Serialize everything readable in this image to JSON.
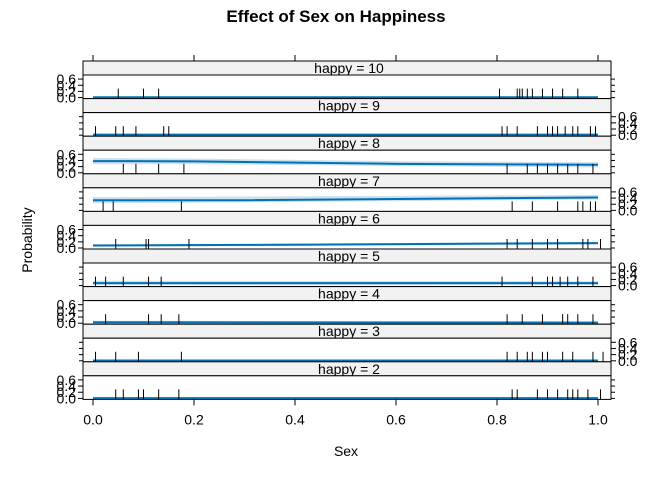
{
  "chart_data": {
    "type": "line",
    "title": "Effect of Sex on Happiness",
    "xlabel": "Sex",
    "ylabel": "Probability",
    "xlim": [
      -0.025,
      1.025
    ],
    "x_ticks": [
      "0.0",
      "0.2",
      "0.4",
      "0.6",
      "0.8",
      "1.0"
    ],
    "y_ticks": [
      "0.0",
      "0.2",
      "0.4",
      "0.6"
    ],
    "ylim": [
      0,
      0.7
    ],
    "colors": {
      "line": "#0072B2",
      "band": "#CCE0F0",
      "strip": "#F2F2F2",
      "rug": "#000000"
    },
    "panels": [
      {
        "label": "happy = 10",
        "x": [
          0,
          1
        ],
        "y": [
          0.01,
          0.01
        ],
        "lower": [
          0.0,
          0.0
        ],
        "upper": [
          0.03,
          0.03
        ],
        "rug": [
          0.05,
          0.1,
          0.13,
          0.805,
          0.84,
          0.845,
          0.85,
          0.86,
          0.87,
          0.89,
          0.91,
          0.93,
          0.96
        ]
      },
      {
        "label": "happy = 9",
        "x": [
          0,
          1
        ],
        "y": [
          0.02,
          0.02
        ],
        "lower": [
          0.0,
          0.0
        ],
        "upper": [
          0.04,
          0.04
        ],
        "rug": [
          0.005,
          0.045,
          0.06,
          0.085,
          0.14,
          0.15,
          0.81,
          0.82,
          0.84,
          0.88,
          0.9,
          0.91,
          0.92,
          0.935,
          0.95,
          0.96,
          0.985,
          0.995
        ]
      },
      {
        "label": "happy = 8",
        "x": [
          0,
          0.2,
          0.6,
          1
        ],
        "y": [
          0.38,
          0.37,
          0.29,
          0.26
        ],
        "lower": [
          0.28,
          0.28,
          0.22,
          0.17
        ],
        "upper": [
          0.48,
          0.46,
          0.38,
          0.34
        ],
        "rug": [
          0.06,
          0.085,
          0.13,
          0.18,
          0.82,
          0.86,
          0.88,
          0.9,
          0.92,
          0.94,
          0.96,
          0.99
        ]
      },
      {
        "label": "happy = 7",
        "x": [
          0,
          0.3,
          1
        ],
        "y": [
          0.33,
          0.33,
          0.42
        ],
        "lower": [
          0.23,
          0.26,
          0.35
        ],
        "upper": [
          0.43,
          0.45,
          0.5
        ],
        "rug": [
          0.02,
          0.04,
          0.175,
          0.83,
          0.87,
          0.92,
          0.96,
          0.97,
          0.985,
          0.995
        ]
      },
      {
        "label": "happy = 6",
        "x": [
          0,
          0.3,
          1
        ],
        "y": [
          0.08,
          0.1,
          0.16
        ],
        "lower": [
          0.04,
          0.06,
          0.11
        ],
        "upper": [
          0.12,
          0.13,
          0.2
        ],
        "rug": [
          0.045,
          0.105,
          0.11,
          0.19,
          0.82,
          0.84,
          0.87,
          0.9,
          0.92,
          0.97,
          0.98,
          1.005
        ]
      },
      {
        "label": "happy = 5",
        "x": [
          0,
          1
        ],
        "y": [
          0.08,
          0.08
        ],
        "lower": [
          0.02,
          0.02
        ],
        "upper": [
          0.16,
          0.14
        ],
        "rug": [
          0.005,
          0.025,
          0.06,
          0.11,
          0.135,
          0.81,
          0.87,
          0.9,
          0.91,
          0.925,
          0.94,
          0.96,
          0.99
        ]
      },
      {
        "label": "happy = 4",
        "x": [
          0,
          1
        ],
        "y": [
          0.03,
          0.02
        ],
        "lower": [
          0.0,
          0.0
        ],
        "upper": [
          0.08,
          0.06
        ],
        "rug": [
          0.025,
          0.11,
          0.135,
          0.17,
          0.82,
          0.85,
          0.89,
          0.93,
          0.94,
          0.96,
          0.99
        ]
      },
      {
        "label": "happy = 3",
        "x": [
          0,
          1
        ],
        "y": [
          0.01,
          0.01
        ],
        "lower": [
          0.0,
          0.0
        ],
        "upper": [
          0.03,
          0.03
        ],
        "rug": [
          0.005,
          0.045,
          0.09,
          0.175,
          0.82,
          0.84,
          0.86,
          0.87,
          0.89,
          0.9,
          0.93,
          0.95,
          0.99,
          1.01
        ]
      },
      {
        "label": "happy = 2",
        "x": [
          0,
          1
        ],
        "y": [
          0.01,
          0.01
        ],
        "lower": [
          0.0,
          0.0
        ],
        "upper": [
          0.03,
          0.03
        ],
        "rug": [
          0.045,
          0.06,
          0.09,
          0.1,
          0.13,
          0.17,
          0.83,
          0.84,
          0.88,
          0.9,
          0.92,
          0.94,
          0.95,
          0.96,
          0.98,
          1.005
        ]
      }
    ]
  }
}
